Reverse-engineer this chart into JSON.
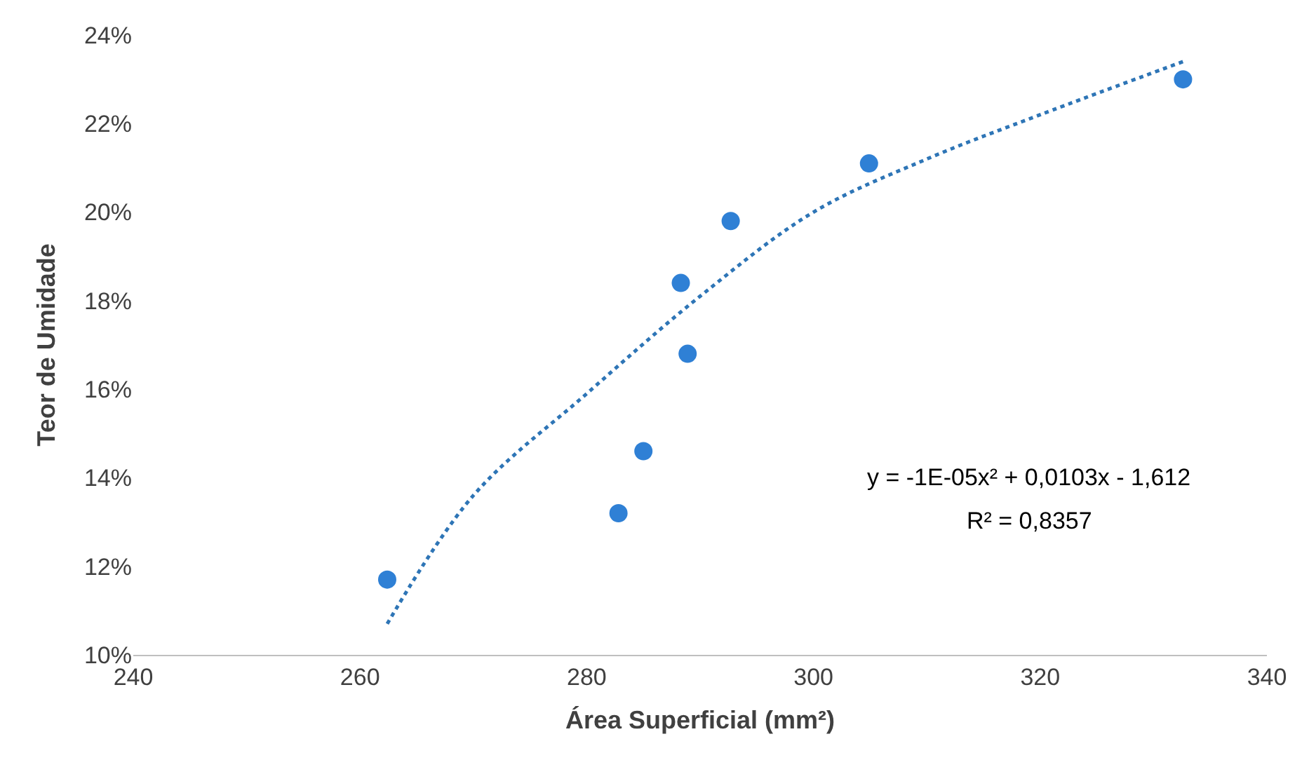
{
  "chart_data": {
    "type": "scatter",
    "xlabel": "Área Superficial (mm²)",
    "ylabel": "Teor de Umidade",
    "xlim": [
      240,
      340
    ],
    "xticks": [
      240,
      260,
      280,
      300,
      320,
      340
    ],
    "ylim": [
      10,
      24
    ],
    "yticks": [
      {
        "value": 10,
        "label": "10%"
      },
      {
        "value": 12,
        "label": "12%"
      },
      {
        "value": 14,
        "label": "14%"
      },
      {
        "value": 16,
        "label": "16%"
      },
      {
        "value": 18,
        "label": "18%"
      },
      {
        "value": 20,
        "label": "20%"
      },
      {
        "value": 22,
        "label": "22%"
      },
      {
        "value": 24,
        "label": "24%"
      }
    ],
    "legend": false,
    "series": [
      {
        "marker": "circle",
        "color": "#2f80d5",
        "x": [
          262.4,
          282.8,
          285.0,
          288.3,
          288.9,
          292.7,
          304.9,
          332.6
        ],
        "values": [
          11.7,
          13.2,
          14.6,
          18.4,
          16.8,
          19.8,
          21.1,
          23.0
        ]
      },
      {
        "type": "line",
        "marker": "none",
        "line_style": "dotted",
        "color": "#2e75b6",
        "x": [
          262.4,
          270,
          280,
          290,
          300,
          310,
          320,
          332.6
        ],
        "values": [
          10.7,
          13.6,
          15.9,
          18.1,
          20.0,
          21.2,
          22.2,
          23.4
        ]
      }
    ],
    "annotations": [
      "y = -1E-05x² + 0,0103x - 1,612",
      "R² = 0,8357"
    ]
  }
}
